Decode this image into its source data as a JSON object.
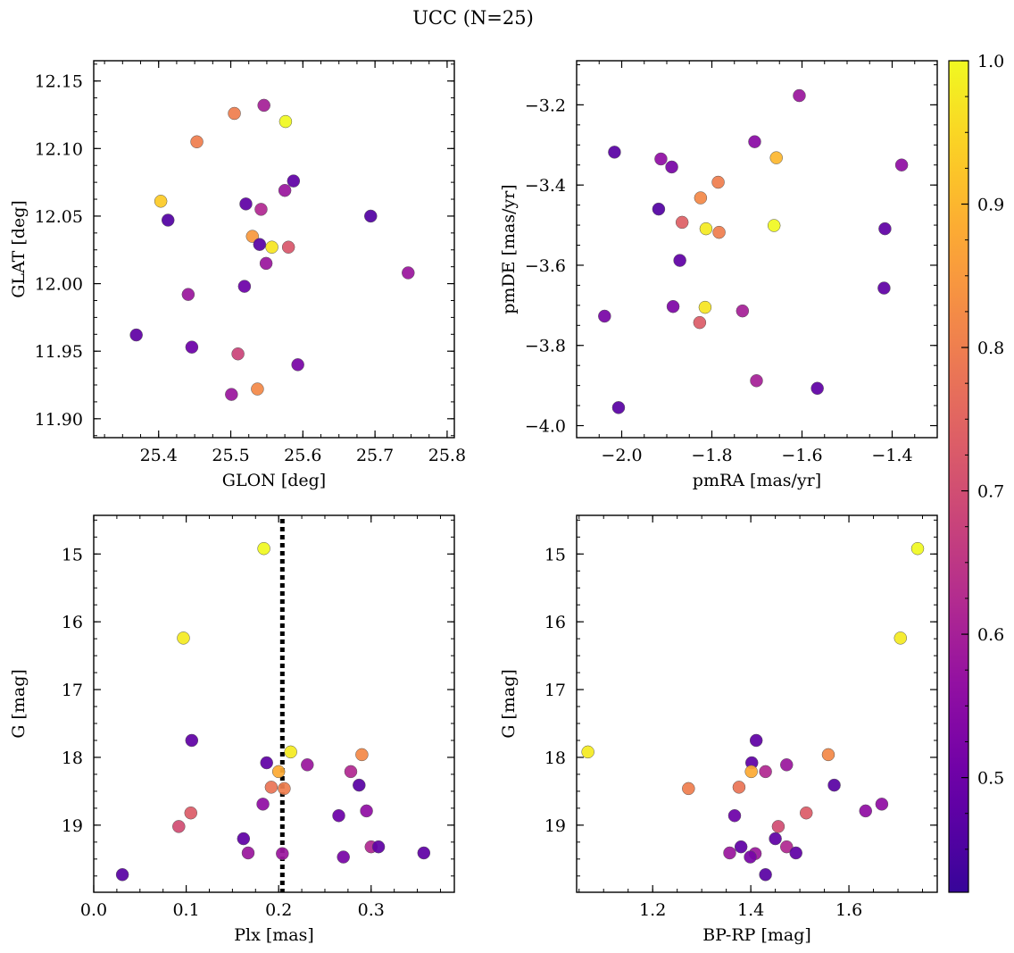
{
  "figure": {
    "title": "UCC (N=25)"
  },
  "colorbar": {
    "colormap": "plasma",
    "range": [
      0.42,
      1.0
    ],
    "ticks": [
      0.5,
      0.6,
      0.7,
      0.8,
      0.9,
      1.0
    ],
    "tick_labels": [
      "0.5",
      "0.6",
      "0.7",
      "0.8",
      "0.9",
      "1.0"
    ]
  },
  "chart_data": [
    {
      "type": "scatter",
      "xlabel": "GLON [deg]",
      "ylabel": "GLAT [deg]",
      "xlim": [
        25.31,
        25.81
      ],
      "ylim": [
        11.886,
        12.165
      ],
      "xticks": [
        25.4,
        25.5,
        25.6,
        25.7,
        25.8
      ],
      "xtick_labels": [
        "25.4",
        "25.5",
        "25.6",
        "25.7",
        "25.8"
      ],
      "yticks": [
        11.9,
        11.95,
        12.0,
        12.05,
        12.1,
        12.15
      ],
      "ytick_labels": [
        "11.90",
        "11.95",
        "12.00",
        "12.05",
        "12.10",
        "12.15"
      ],
      "points": [
        {
          "x": 25.505,
          "y": 12.126,
          "c": 0.8
        },
        {
          "x": 25.546,
          "y": 12.132,
          "c": 0.6
        },
        {
          "x": 25.576,
          "y": 12.12,
          "c": 1.0
        },
        {
          "x": 25.453,
          "y": 12.105,
          "c": 0.8
        },
        {
          "x": 25.587,
          "y": 12.076,
          "c": 0.48
        },
        {
          "x": 25.575,
          "y": 12.069,
          "c": 0.58
        },
        {
          "x": 25.403,
          "y": 12.061,
          "c": 0.93
        },
        {
          "x": 25.521,
          "y": 12.059,
          "c": 0.48
        },
        {
          "x": 25.542,
          "y": 12.055,
          "c": 0.62
        },
        {
          "x": 25.413,
          "y": 12.047,
          "c": 0.46
        },
        {
          "x": 25.694,
          "y": 12.05,
          "c": 0.46
        },
        {
          "x": 25.53,
          "y": 12.035,
          "c": 0.85
        },
        {
          "x": 25.54,
          "y": 12.029,
          "c": 0.47
        },
        {
          "x": 25.557,
          "y": 12.027,
          "c": 0.97
        },
        {
          "x": 25.58,
          "y": 12.027,
          "c": 0.72
        },
        {
          "x": 25.549,
          "y": 12.015,
          "c": 0.58
        },
        {
          "x": 25.746,
          "y": 12.008,
          "c": 0.58
        },
        {
          "x": 25.519,
          "y": 11.998,
          "c": 0.5
        },
        {
          "x": 25.441,
          "y": 11.992,
          "c": 0.58
        },
        {
          "x": 25.369,
          "y": 11.962,
          "c": 0.48
        },
        {
          "x": 25.446,
          "y": 11.953,
          "c": 0.5
        },
        {
          "x": 25.51,
          "y": 11.948,
          "c": 0.68
        },
        {
          "x": 25.593,
          "y": 11.94,
          "c": 0.52
        },
        {
          "x": 25.537,
          "y": 11.922,
          "c": 0.82
        },
        {
          "x": 25.501,
          "y": 11.918,
          "c": 0.58
        }
      ]
    },
    {
      "type": "scatter",
      "xlabel": "pmRA [mas/yr]",
      "ylabel": "pmDE [mas/yr]",
      "xlim": [
        -2.1,
        -1.3
      ],
      "ylim": [
        -4.03,
        -3.09
      ],
      "xticks": [
        -2.0,
        -1.8,
        -1.6,
        -1.4
      ],
      "xtick_labels": [
        "−2.0",
        "−1.8",
        "−1.6",
        "−1.4"
      ],
      "yticks": [
        -4.0,
        -3.8,
        -3.6,
        -3.4,
        -3.2
      ],
      "ytick_labels": [
        "−4.0",
        "−3.8",
        "−3.6",
        "−3.4",
        "−3.2"
      ],
      "points": [
        {
          "x": -1.606,
          "y": -3.177,
          "c": 0.58
        },
        {
          "x": -2.016,
          "y": -3.318,
          "c": 0.47
        },
        {
          "x": -1.705,
          "y": -3.292,
          "c": 0.55
        },
        {
          "x": -1.913,
          "y": -3.335,
          "c": 0.56
        },
        {
          "x": -1.889,
          "y": -3.355,
          "c": 0.52
        },
        {
          "x": -1.657,
          "y": -3.332,
          "c": 0.9
        },
        {
          "x": -1.379,
          "y": -3.35,
          "c": 0.56
        },
        {
          "x": -1.786,
          "y": -3.393,
          "c": 0.8
        },
        {
          "x": -1.825,
          "y": -3.432,
          "c": 0.82
        },
        {
          "x": -1.918,
          "y": -3.46,
          "c": 0.46
        },
        {
          "x": -1.866,
          "y": -3.493,
          "c": 0.74
        },
        {
          "x": -1.662,
          "y": -3.501,
          "c": 1.0
        },
        {
          "x": -1.813,
          "y": -3.509,
          "c": 0.98
        },
        {
          "x": -1.784,
          "y": -3.518,
          "c": 0.8
        },
        {
          "x": -1.416,
          "y": -3.509,
          "c": 0.48
        },
        {
          "x": -1.871,
          "y": -3.588,
          "c": 0.48
        },
        {
          "x": -1.418,
          "y": -3.657,
          "c": 0.48
        },
        {
          "x": -1.886,
          "y": -3.703,
          "c": 0.53
        },
        {
          "x": -1.815,
          "y": -3.705,
          "c": 0.97
        },
        {
          "x": -1.732,
          "y": -3.714,
          "c": 0.6
        },
        {
          "x": -2.038,
          "y": -3.727,
          "c": 0.52
        },
        {
          "x": -1.827,
          "y": -3.743,
          "c": 0.73
        },
        {
          "x": -1.701,
          "y": -3.888,
          "c": 0.6
        },
        {
          "x": -1.566,
          "y": -3.907,
          "c": 0.48
        },
        {
          "x": -2.007,
          "y": -3.955,
          "c": 0.47
        }
      ]
    },
    {
      "type": "scatter",
      "xlabel": "Plx [mas]",
      "ylabel": "G [mag]",
      "xlim": [
        0.0,
        0.39
      ],
      "ylim": [
        19.99,
        14.43
      ],
      "y_inverted": true,
      "vline": {
        "x": 0.204,
        "style": "dotted"
      },
      "xticks": [
        0.0,
        0.1,
        0.2,
        0.3
      ],
      "xtick_labels": [
        "0.0",
        "0.1",
        "0.2",
        "0.3"
      ],
      "yticks": [
        15,
        16,
        17,
        18,
        19
      ],
      "ytick_labels": [
        "15",
        "16",
        "17",
        "18",
        "19"
      ],
      "points": [
        {
          "x": 0.184,
          "y": 14.92,
          "c": 1.0
        },
        {
          "x": 0.097,
          "y": 16.24,
          "c": 0.98
        },
        {
          "x": 0.106,
          "y": 17.75,
          "c": 0.48
        },
        {
          "x": 0.213,
          "y": 17.92,
          "c": 0.98
        },
        {
          "x": 0.29,
          "y": 17.96,
          "c": 0.82
        },
        {
          "x": 0.187,
          "y": 18.08,
          "c": 0.48
        },
        {
          "x": 0.231,
          "y": 18.11,
          "c": 0.58
        },
        {
          "x": 0.2,
          "y": 18.21,
          "c": 0.88
        },
        {
          "x": 0.278,
          "y": 18.21,
          "c": 0.62
        },
        {
          "x": 0.192,
          "y": 18.44,
          "c": 0.78
        },
        {
          "x": 0.206,
          "y": 18.46,
          "c": 0.8
        },
        {
          "x": 0.287,
          "y": 18.41,
          "c": 0.47
        },
        {
          "x": 0.183,
          "y": 18.69,
          "c": 0.56
        },
        {
          "x": 0.105,
          "y": 18.82,
          "c": 0.73
        },
        {
          "x": 0.295,
          "y": 18.79,
          "c": 0.56
        },
        {
          "x": 0.265,
          "y": 18.86,
          "c": 0.5
        },
        {
          "x": 0.092,
          "y": 19.02,
          "c": 0.7
        },
        {
          "x": 0.162,
          "y": 19.2,
          "c": 0.48
        },
        {
          "x": 0.3,
          "y": 19.32,
          "c": 0.62
        },
        {
          "x": 0.308,
          "y": 19.32,
          "c": 0.48
        },
        {
          "x": 0.167,
          "y": 19.41,
          "c": 0.58
        },
        {
          "x": 0.204,
          "y": 19.42,
          "c": 0.58
        },
        {
          "x": 0.357,
          "y": 19.41,
          "c": 0.48
        },
        {
          "x": 0.27,
          "y": 19.47,
          "c": 0.52
        },
        {
          "x": 0.031,
          "y": 19.73,
          "c": 0.47
        }
      ]
    },
    {
      "type": "scatter",
      "xlabel": "BP-RP [mag]",
      "ylabel": "G [mag]",
      "xlim": [
        1.045,
        1.78
      ],
      "ylim": [
        19.99,
        14.43
      ],
      "y_inverted": true,
      "xticks": [
        1.2,
        1.4,
        1.6
      ],
      "xtick_labels": [
        "1.2",
        "1.4",
        "1.6"
      ],
      "yticks": [
        15,
        16,
        17,
        18,
        19
      ],
      "ytick_labels": [
        "15",
        "16",
        "17",
        "18",
        "19"
      ],
      "points": [
        {
          "x": 1.74,
          "y": 14.92,
          "c": 1.0
        },
        {
          "x": 1.705,
          "y": 16.24,
          "c": 0.98
        },
        {
          "x": 1.068,
          "y": 17.92,
          "c": 0.98
        },
        {
          "x": 1.411,
          "y": 17.75,
          "c": 0.48
        },
        {
          "x": 1.558,
          "y": 17.96,
          "c": 0.82
        },
        {
          "x": 1.402,
          "y": 18.08,
          "c": 0.48
        },
        {
          "x": 1.473,
          "y": 18.11,
          "c": 0.58
        },
        {
          "x": 1.401,
          "y": 18.21,
          "c": 0.88
        },
        {
          "x": 1.43,
          "y": 18.21,
          "c": 0.62
        },
        {
          "x": 1.273,
          "y": 18.46,
          "c": 0.8
        },
        {
          "x": 1.376,
          "y": 18.44,
          "c": 0.78
        },
        {
          "x": 1.57,
          "y": 18.41,
          "c": 0.47
        },
        {
          "x": 1.667,
          "y": 18.69,
          "c": 0.56
        },
        {
          "x": 1.634,
          "y": 18.79,
          "c": 0.56
        },
        {
          "x": 1.513,
          "y": 18.82,
          "c": 0.73
        },
        {
          "x": 1.367,
          "y": 18.86,
          "c": 0.5
        },
        {
          "x": 1.456,
          "y": 19.02,
          "c": 0.7
        },
        {
          "x": 1.45,
          "y": 19.2,
          "c": 0.48
        },
        {
          "x": 1.473,
          "y": 19.32,
          "c": 0.62
        },
        {
          "x": 1.38,
          "y": 19.32,
          "c": 0.48
        },
        {
          "x": 1.357,
          "y": 19.41,
          "c": 0.58
        },
        {
          "x": 1.409,
          "y": 19.42,
          "c": 0.58
        },
        {
          "x": 1.492,
          "y": 19.41,
          "c": 0.48
        },
        {
          "x": 1.399,
          "y": 19.47,
          "c": 0.52
        },
        {
          "x": 1.43,
          "y": 19.73,
          "c": 0.47
        }
      ]
    }
  ]
}
